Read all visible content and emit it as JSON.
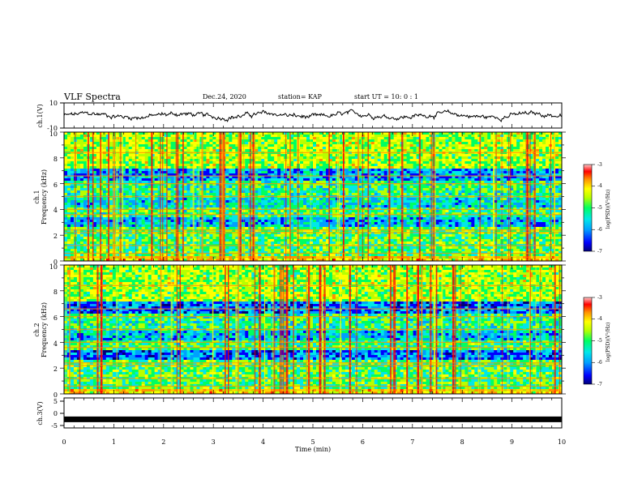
{
  "header": {
    "title": "VLF Spectra",
    "date": "Dec.24, 2020",
    "station": "station= KAP",
    "start": "start  UT =   10: 0  : 1"
  },
  "colors": {
    "colormap": [
      "#00007a",
      "#0000ff",
      "#00a0ff",
      "#00e8e8",
      "#00ff60",
      "#b8ff00",
      "#ffff00",
      "#ff9000",
      "#ff0000",
      "#ffc8c8"
    ],
    "trace": "#000000",
    "axis": "#000000"
  },
  "chart_data": [
    {
      "id": "ch1-waveform",
      "type": "line",
      "ylabel": "ch.1(V)",
      "ylim": [
        -10,
        10
      ],
      "yticks": [
        "10",
        "-10"
      ],
      "xlim": [
        0,
        10
      ],
      "description_series": "noisy waveform between about -3 and 3 V"
    },
    {
      "id": "ch1-spectrogram",
      "type": "heatmap",
      "ylabel_top": "ch.1",
      "ylabel": "Frequency  (kHz)",
      "ylim": [
        0,
        10
      ],
      "yticks": [
        "0",
        "2",
        "4",
        "6",
        "8",
        "10"
      ],
      "xlim": [
        0,
        10
      ],
      "colorbar": {
        "label": "log(PSD)(V²/Hz)",
        "range": [
          -7,
          -3
        ],
        "ticks": [
          "-3",
          "-4",
          "-5",
          "-6",
          "-7"
        ]
      }
    },
    {
      "id": "ch2-spectrogram",
      "type": "heatmap",
      "ylabel_top": "ch.2",
      "ylabel": "Frequency  (kHz)",
      "ylim": [
        0,
        10
      ],
      "yticks": [
        "0",
        "2",
        "4",
        "6",
        "8",
        "10"
      ],
      "xlim": [
        0,
        10
      ],
      "colorbar": {
        "label": "log(PSD)(V²/Hz)",
        "range": [
          -7,
          -3
        ],
        "ticks": [
          "-3",
          "-4",
          "-5",
          "-6",
          "-7"
        ]
      }
    },
    {
      "id": "ch3-waveform",
      "type": "line",
      "ylabel": "ch.3(V)",
      "ylim": [
        -5,
        5
      ],
      "yticks": [
        "5",
        "0",
        "-5"
      ],
      "xlim": [
        0,
        10
      ],
      "xlabel": "Time  (min)",
      "xticks": [
        "0",
        "1",
        "2",
        "3",
        "4",
        "5",
        "6",
        "7",
        "8",
        "9",
        "10"
      ],
      "value_level": -2
    }
  ]
}
